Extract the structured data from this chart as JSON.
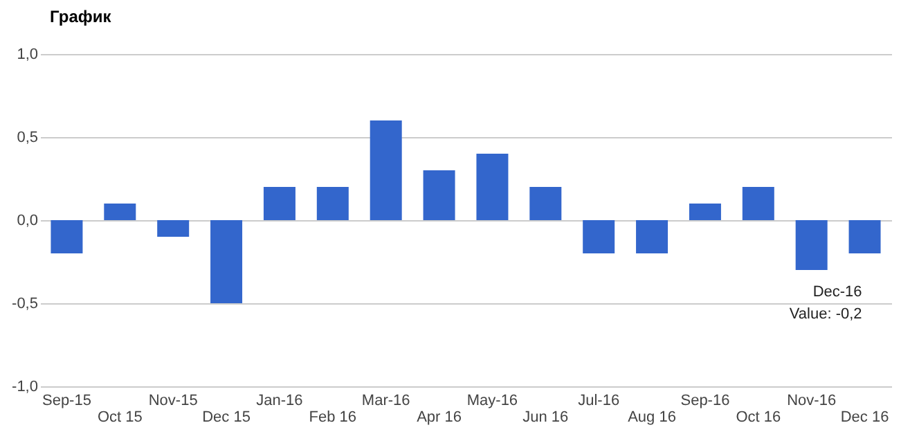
{
  "chart_data": {
    "type": "bar",
    "title": "График",
    "categories": [
      "Sep-15",
      "Oct 15",
      "Nov-15",
      "Dec 15",
      "Jan-16",
      "Feb 16",
      "Mar-16",
      "Apr 16",
      "May-16",
      "Jun 16",
      "Jul-16",
      "Aug 16",
      "Sep-16",
      "Oct 16",
      "Nov-16",
      "Dec 16"
    ],
    "values": [
      -0.2,
      0.1,
      -0.1,
      -0.5,
      0.2,
      0.2,
      0.6,
      0.3,
      0.4,
      0.2,
      -0.2,
      -0.2,
      0.1,
      0.2,
      -0.3,
      -0.2
    ],
    "color": "#3366cc",
    "ylim": [
      -1.0,
      1.0
    ],
    "yticks": [
      {
        "value": -1.0,
        "label": "-1,0"
      },
      {
        "value": -0.5,
        "label": "-0,5"
      },
      {
        "value": 0.0,
        "label": "0,0"
      },
      {
        "value": 0.5,
        "label": "0,5"
      },
      {
        "value": 1.0,
        "label": "1,0"
      }
    ],
    "grid": "y",
    "annotations": [
      {
        "text": "Dec-16\nValue: -0,2",
        "x": "Dec 16",
        "y": -0.2
      }
    ]
  }
}
